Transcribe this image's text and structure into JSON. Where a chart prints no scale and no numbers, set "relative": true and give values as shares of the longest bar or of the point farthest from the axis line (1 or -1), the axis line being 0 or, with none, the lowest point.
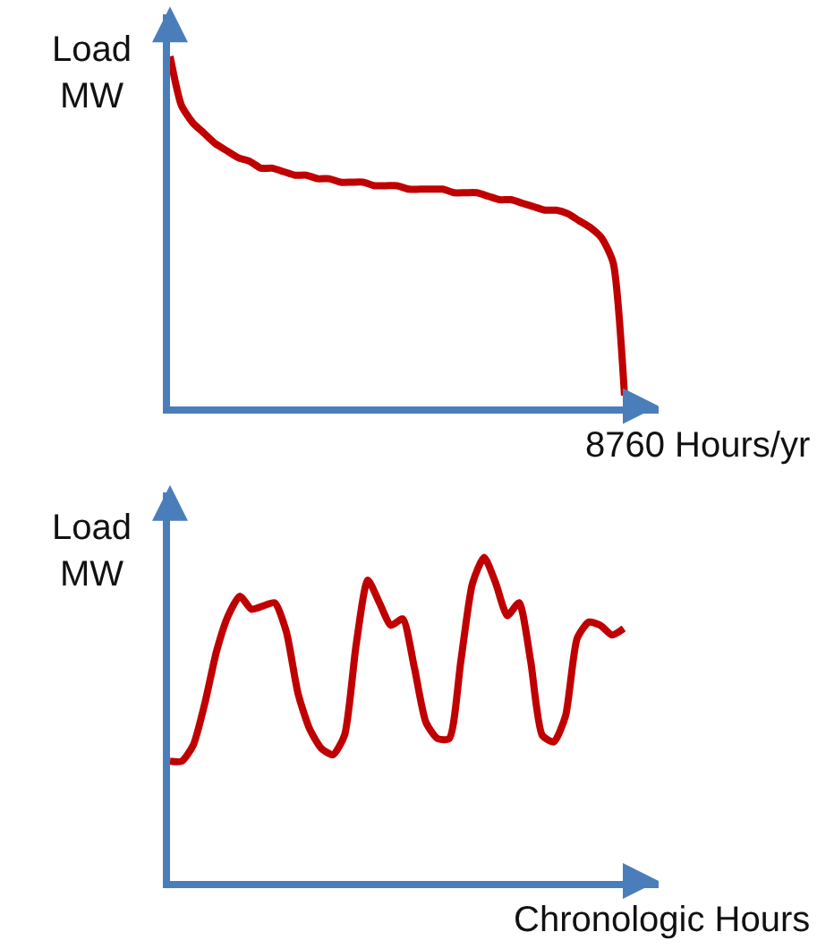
{
  "chart_data": [
    {
      "type": "line",
      "ylabel": "Load\nMW",
      "xlabel": "8760 Hours/yr",
      "relative": true,
      "categories": [
        null,
        null,
        null,
        null,
        null,
        null,
        null,
        null,
        null,
        null,
        null,
        null,
        null,
        null,
        null,
        null,
        null,
        null,
        null,
        null,
        null,
        null,
        null,
        null,
        null,
        null,
        null,
        null,
        null,
        null,
        null,
        null,
        null,
        null,
        null,
        null,
        null,
        null,
        null,
        null,
        null
      ],
      "series": [
        {
          "color": "#c00000",
          "values": [
            1.0,
            0.86,
            0.81,
            0.78,
            0.75,
            0.73,
            0.71,
            0.7,
            0.68,
            0.68,
            0.67,
            0.66,
            0.66,
            0.65,
            0.65,
            0.64,
            0.64,
            0.64,
            0.63,
            0.63,
            0.63,
            0.62,
            0.62,
            0.62,
            0.62,
            0.61,
            0.61,
            0.61,
            0.6,
            0.59,
            0.59,
            0.58,
            0.57,
            0.56,
            0.56,
            0.55,
            0.53,
            0.51,
            0.48,
            0.41,
            0.03
          ]
        }
      ]
    },
    {
      "type": "line",
      "ylabel": "Load\nMW",
      "xlabel": "Chronologic Hours",
      "relative": true,
      "categories": [
        null,
        null,
        null,
        null,
        null,
        null,
        null,
        null,
        null,
        null,
        null,
        null,
        null,
        null,
        null,
        null,
        null,
        null,
        null,
        null,
        null,
        null,
        null,
        null,
        null,
        null,
        null,
        null,
        null,
        null,
        null,
        null,
        null,
        null,
        null,
        null,
        null,
        null,
        null,
        null
      ],
      "series": [
        {
          "color": "#c00000",
          "values": [
            0.37,
            0.37,
            0.42,
            0.55,
            0.71,
            0.82,
            0.88,
            0.84,
            0.85,
            0.86,
            0.77,
            0.58,
            0.47,
            0.41,
            0.39,
            0.45,
            0.73,
            0.93,
            0.86,
            0.79,
            0.81,
            0.66,
            0.49,
            0.44,
            0.44,
            0.68,
            0.92,
            1.0,
            0.92,
            0.82,
            0.86,
            0.68,
            0.45,
            0.43,
            0.51,
            0.75,
            0.8,
            0.79,
            0.76,
            0.78
          ]
        }
      ]
    }
  ]
}
